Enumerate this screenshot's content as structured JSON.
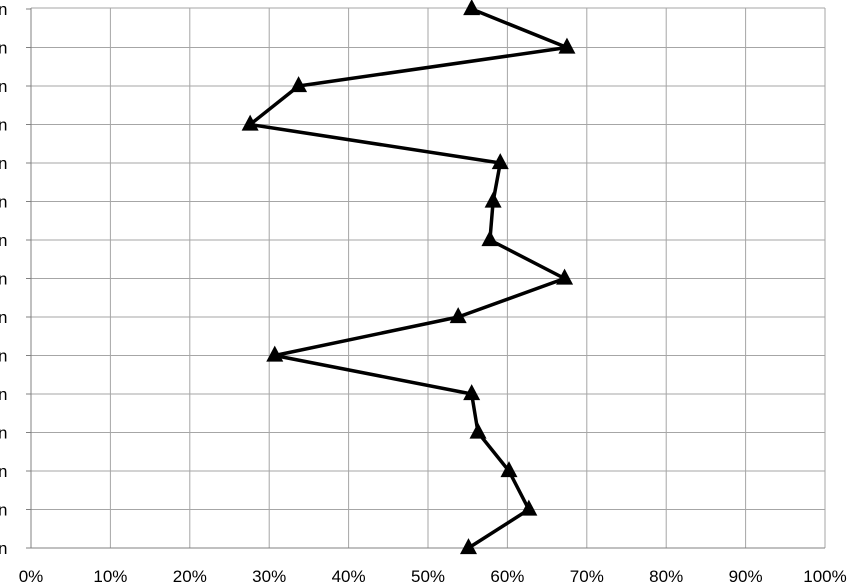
{
  "chart_data": {
    "type": "line",
    "title": "",
    "xlabel": "",
    "ylabel": "",
    "orientation": "horizontal-values",
    "xlim": [
      0,
      100
    ],
    "x_ticks": [
      "0%",
      "10%",
      "20%",
      "30%",
      "40%",
      "50%",
      "60%",
      "70%",
      "80%",
      "90%",
      "100%"
    ],
    "categories": [
      "n",
      "n",
      "n",
      "n",
      "n",
      "n",
      "n",
      "n",
      "n",
      "n",
      "n",
      "n",
      "n",
      "n",
      "n"
    ],
    "series": [
      {
        "marker": "triangle",
        "color": "#000000",
        "values": [
          55.5,
          67.5,
          33.7,
          27.6,
          59.1,
          58.2,
          57.8,
          67.2,
          53.8,
          30.7,
          55.5,
          56.3,
          60.2,
          62.7,
          55.1
        ]
      }
    ],
    "grid": true,
    "gridline_color": "#a6a6a6",
    "legend": "none"
  }
}
